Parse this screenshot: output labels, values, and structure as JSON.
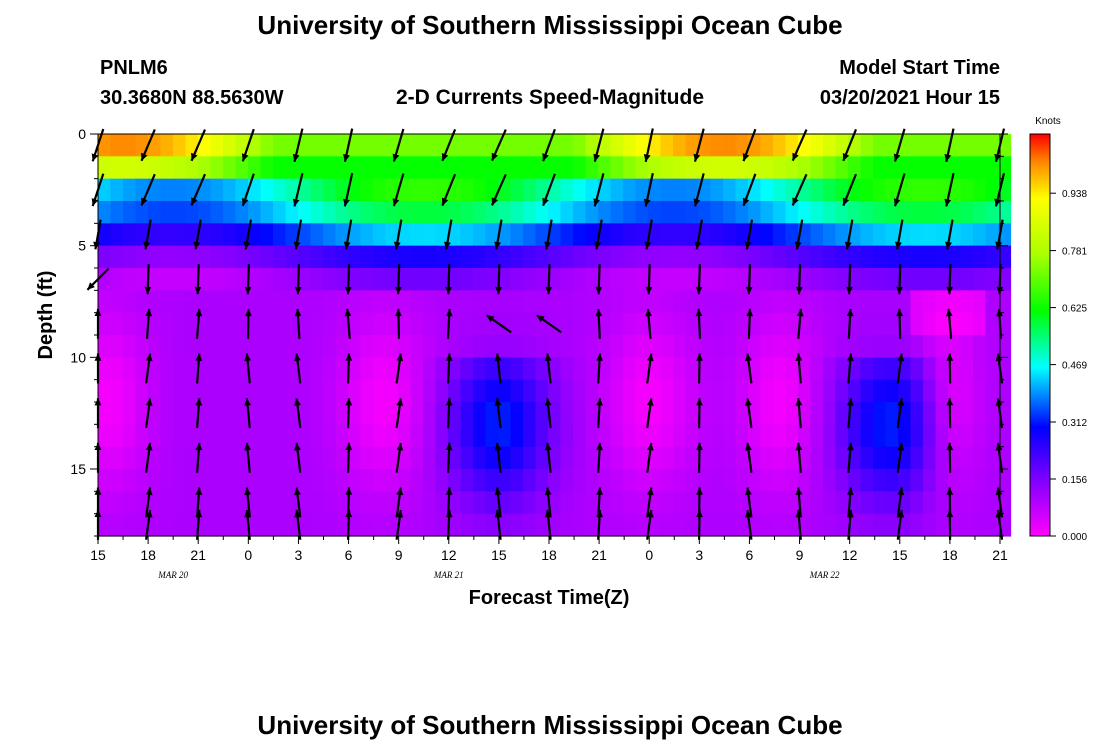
{
  "page": {
    "title_top": "University of Southern Mississippi Ocean Cube",
    "title_bottom": "University of Southern Mississippi Ocean Cube",
    "station": "PNLM6",
    "coords": "30.3680N 88.5630W",
    "subtitle": "2-D Currents Speed-Magnitude",
    "model_start_label": "Model Start Time",
    "model_start_value": "03/20/2021 Hour 15"
  },
  "chart_data": {
    "type": "heatmap",
    "title": "2-D Currents Speed-Magnitude",
    "xlabel": "Forecast Time(Z)",
    "ylabel": "Depth (ft)",
    "colorbar_label": "Knots",
    "x_ticks": [
      "15",
      "18",
      "21",
      "0",
      "3",
      "6",
      "9",
      "12",
      "15",
      "18",
      "21",
      "0",
      "3",
      "6",
      "9",
      "12",
      "15",
      "18",
      "21"
    ],
    "date_labels": [
      "MAR 20",
      "MAR 21",
      "MAR 22"
    ],
    "y_ticks": [
      "0",
      "5",
      "10",
      "15"
    ],
    "ylim": [
      0,
      18
    ],
    "colorbar_ticks": [
      "0.000",
      "0.156",
      "0.312",
      "0.469",
      "0.625",
      "0.781",
      "0.938"
    ],
    "colorbar_range": [
      0,
      1.1
    ],
    "depth_rows_ft": [
      0.5,
      1.5,
      2.5,
      3.5,
      4.5,
      5.5,
      6.5,
      7.5,
      8.5,
      9.5,
      10.5,
      11.5,
      12.5,
      13.5,
      14.5,
      15.5,
      16.5,
      17.5
    ],
    "speed_profiles_knots": [
      {
        "depth_ft": 0.5,
        "min": 0.6,
        "max": 1.05
      },
      {
        "depth_ft": 1.5,
        "min": 0.45,
        "max": 0.9
      },
      {
        "depth_ft": 2.5,
        "min": 0.4,
        "max": 0.72
      },
      {
        "depth_ft": 3.5,
        "min": 0.33,
        "max": 0.62
      },
      {
        "depth_ft": 4.5,
        "min": 0.2,
        "max": 0.45
      },
      {
        "depth_ft": 5.5,
        "min": 0.12,
        "max": 0.3
      },
      {
        "depth_ft": 6.5,
        "min": 0.06,
        "max": 0.2
      },
      {
        "depth_ft": 8.5,
        "min": 0.04,
        "max": 0.16
      },
      {
        "depth_ft": 12.5,
        "min": 0.0,
        "max": 0.34
      },
      {
        "depth_ft": 17.5,
        "min": 0.04,
        "max": 0.2
      }
    ],
    "vector_direction": "surface currents set south to southwest; deep currents set north",
    "grid": false,
    "legend": "colorbar right"
  }
}
